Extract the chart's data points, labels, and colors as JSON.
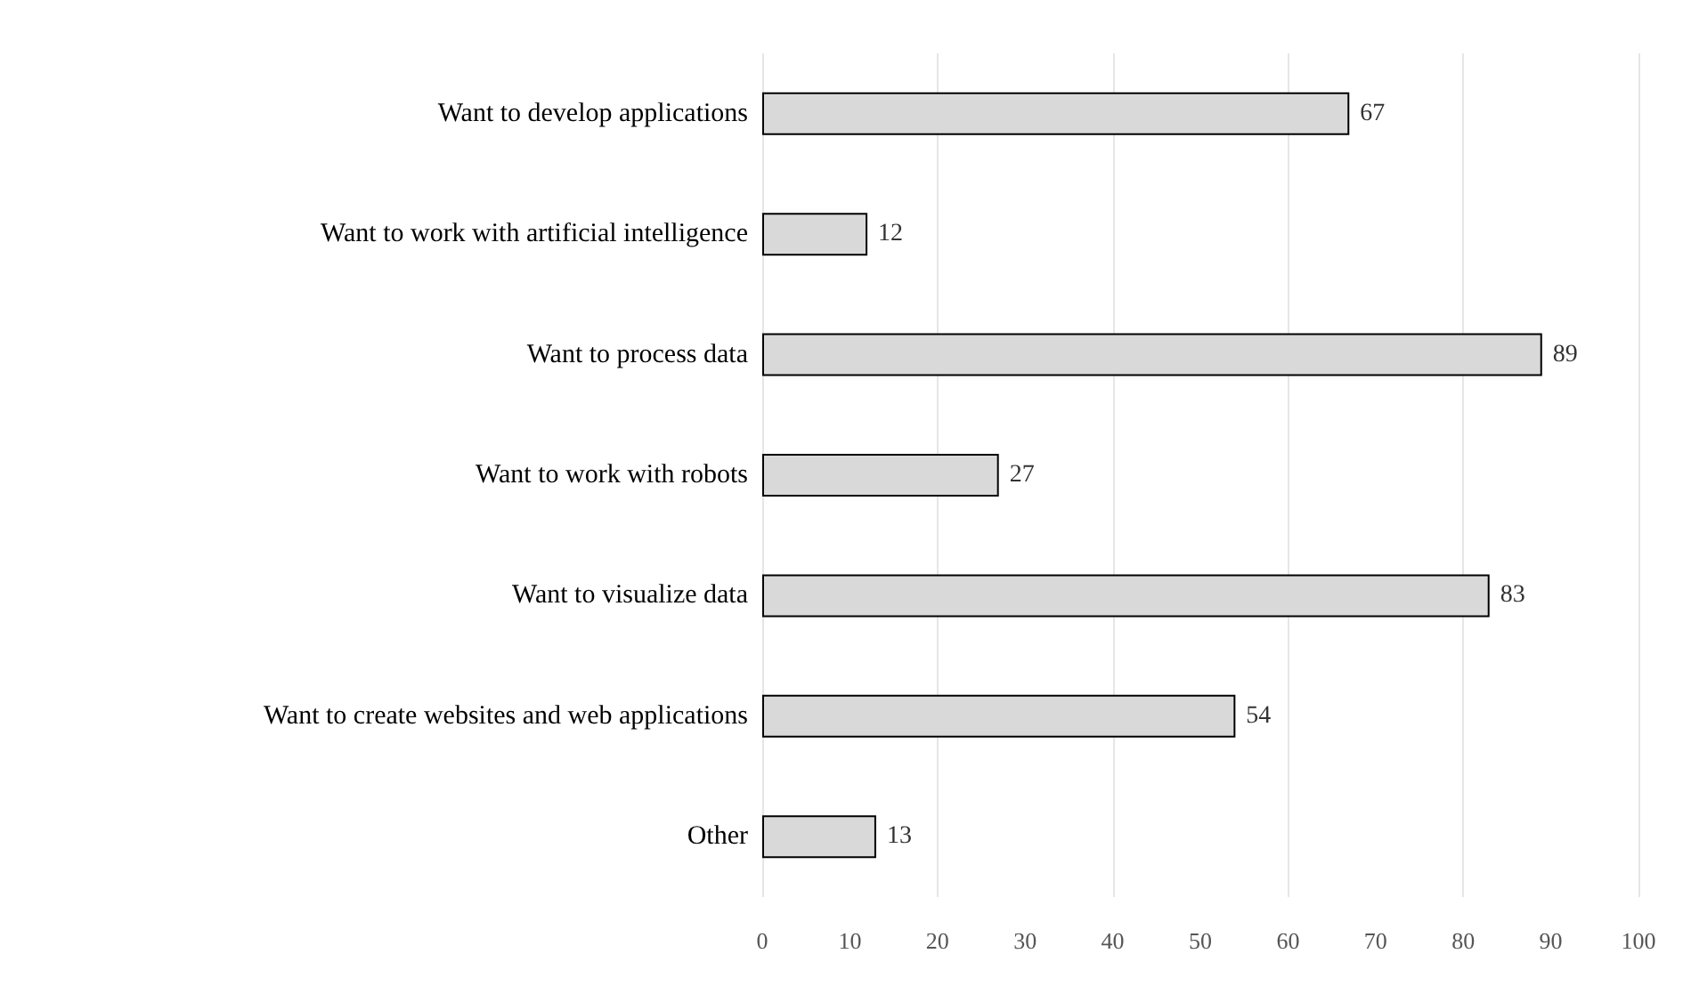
{
  "chart_data": {
    "type": "bar",
    "orientation": "horizontal",
    "categories": [
      "Want to develop applications",
      "Want to work with artificial intelligence",
      "Want to process data",
      "Want to work with robots",
      "Want to visualize data",
      "Want to create websites and web applications",
      "Other"
    ],
    "values": [
      67,
      12,
      89,
      27,
      83,
      54,
      13
    ],
    "color": "#d9d9d9",
    "xlim": [
      0,
      100
    ],
    "xticks": [
      0,
      10,
      20,
      30,
      40,
      50,
      60,
      70,
      80,
      90,
      100
    ],
    "grid": "x",
    "data_labels": true
  }
}
